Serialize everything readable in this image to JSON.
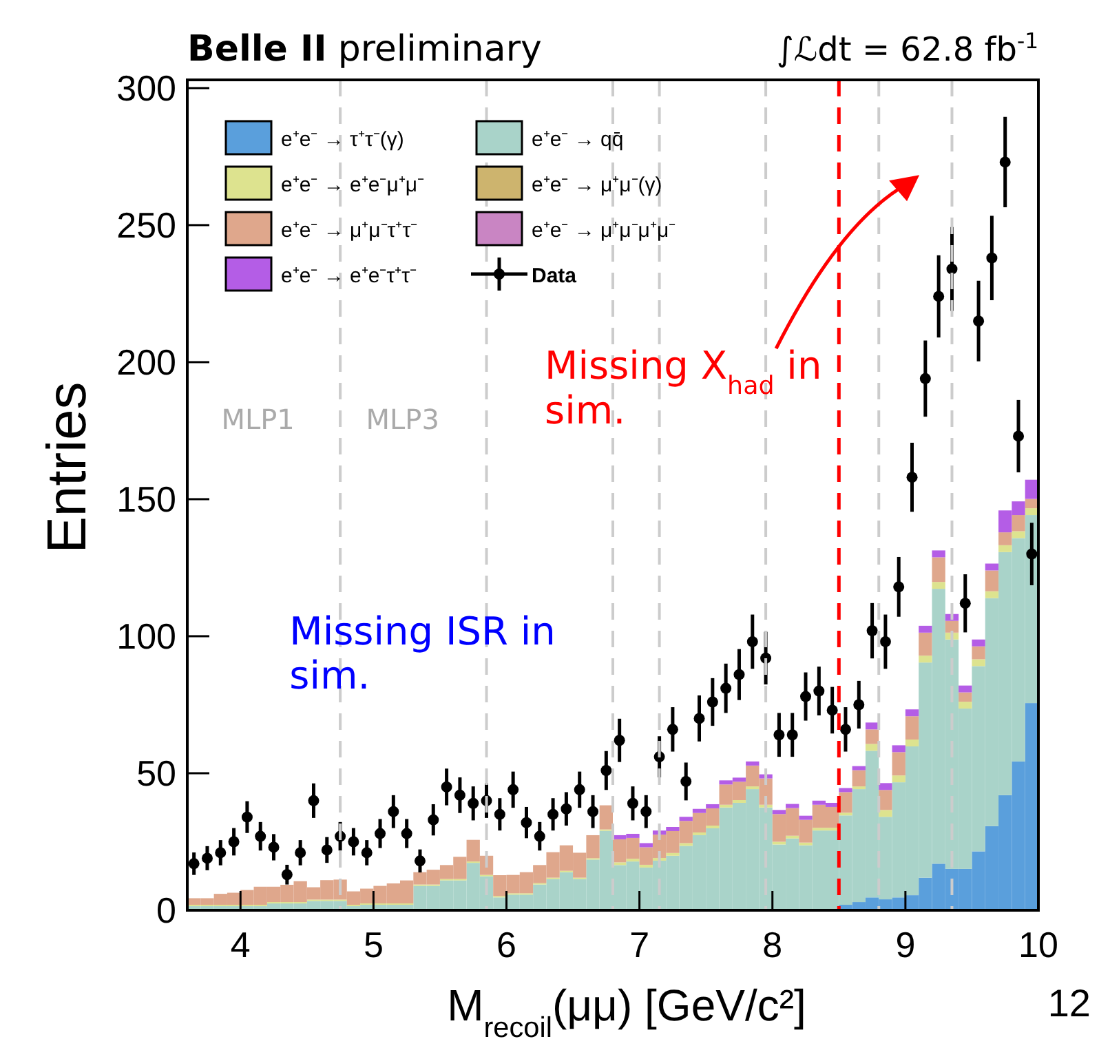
{
  "chart_data": {
    "type": "bar",
    "title": "Belle II",
    "subtitle": "preliminary",
    "xlabel": "M$_{recoil}$(μμ) [GeV/c²]",
    "ylabel": "Entries",
    "x": [
      3.65,
      3.75,
      3.85,
      3.95,
      4.05,
      4.15,
      4.25,
      4.35,
      4.45,
      4.55,
      4.65,
      4.75,
      4.85,
      4.95,
      5.05,
      5.15,
      5.25,
      5.35,
      5.45,
      5.55,
      5.65,
      5.75,
      5.85,
      5.95,
      6.05,
      6.15,
      6.25,
      6.35,
      6.45,
      6.55,
      6.65,
      6.75,
      6.85,
      6.95,
      7.05,
      7.15,
      7.25,
      7.35,
      7.45,
      7.55,
      7.65,
      7.75,
      7.85,
      7.95,
      8.05,
      8.15,
      8.25,
      8.35,
      8.45,
      8.55,
      8.65,
      8.75,
      8.85,
      8.95,
      9.05,
      9.15,
      9.25,
      9.35,
      9.45,
      9.55,
      9.65,
      9.75,
      9.85,
      9.95
    ],
    "stacked": true,
    "xlim": [
      3.6,
      10.0
    ],
    "xticks": [
      4,
      5,
      6,
      7,
      8,
      9,
      10
    ],
    "ylim": [
      0,
      303
    ],
    "yticks": [
      0,
      50,
      100,
      150,
      200,
      250,
      300
    ],
    "legend": "top left",
    "series": [
      {
        "name": "e⁺e⁻ → τ⁺τ⁻(γ)",
        "color": "#5a9fdc",
        "values": [
          0.5,
          0.5,
          0.5,
          0.5,
          0.5,
          0.5,
          0.5,
          0.5,
          0.5,
          0.5,
          0.5,
          0.5,
          0.5,
          0.5,
          0.5,
          0.5,
          0.5,
          0.5,
          0.5,
          0.5,
          0.5,
          0.5,
          0.5,
          0.5,
          0.5,
          0.5,
          0.5,
          0.5,
          0.5,
          0.5,
          0.5,
          0.5,
          0.5,
          0.5,
          0.5,
          0.5,
          0.5,
          0.5,
          0.5,
          0.5,
          0.5,
          0.5,
          0.5,
          0.5,
          0.5,
          0.5,
          0.5,
          0.5,
          0.5,
          2,
          3,
          4.7,
          4,
          4.7,
          5.5,
          11.9,
          17,
          15.1,
          15.1,
          21.5,
          30.7,
          42,
          54.3,
          75.6
        ]
      },
      {
        "name": "e⁺e⁻ → qq̄",
        "color": "#a9d3c9",
        "values": [
          1,
          1,
          1,
          1,
          1,
          1,
          2,
          2,
          2,
          2.9,
          2.9,
          2.9,
          1,
          1.5,
          1.5,
          1.5,
          1.5,
          8.4,
          8.4,
          10.4,
          10.4,
          16.8,
          11.9,
          4.2,
          5.2,
          5.2,
          8.9,
          10.9,
          13.4,
          10.9,
          18,
          28.5,
          16,
          17.3,
          15.1,
          17.6,
          19.4,
          23,
          26.9,
          29.4,
          37,
          38.7,
          43.7,
          37,
          23.5,
          25.7,
          23.2,
          28.6,
          28.6,
          32.6,
          41.2,
          53.5,
          30.1,
          42,
          54.3,
          78.5,
          100.3,
          83.7,
          58.5,
          67.6,
          83.2,
          88.7,
          81.5,
          68.6
        ]
      },
      {
        "name": "e⁺e⁻ → e⁺e⁻μ⁺μ⁻",
        "color": "#dde38f",
        "values": [
          0.5,
          0.5,
          0.5,
          0.5,
          0.5,
          0.5,
          0.5,
          0.5,
          0.5,
          0.5,
          0.5,
          0.5,
          0.5,
          0.5,
          0.5,
          0.5,
          0.5,
          0.5,
          0.5,
          0.5,
          0.5,
          0.5,
          0.5,
          0.5,
          0.5,
          0.5,
          0.5,
          0.5,
          0.5,
          0.5,
          0.5,
          0.5,
          1,
          1,
          1,
          1,
          1,
          1,
          1,
          1,
          1,
          1,
          1,
          1,
          1,
          1,
          1,
          1,
          1,
          1,
          1,
          2.5,
          2.5,
          2.5,
          2.5,
          2.5,
          2.5,
          2.5,
          2.5,
          2.5,
          2.5,
          2.5,
          2.5,
          2.5
        ]
      },
      {
        "name": "e⁺e⁻ → μ⁺μ⁻(γ)",
        "color": "#cdb46e",
        "values": [
          0,
          0,
          0,
          0,
          0,
          0,
          0,
          0,
          0,
          0,
          0,
          0,
          0,
          0,
          0,
          0,
          0,
          0,
          0,
          0,
          0,
          0,
          0,
          0,
          0,
          0,
          0,
          0,
          0,
          0,
          0,
          0,
          0,
          0,
          0,
          0,
          0,
          0,
          0,
          0,
          0,
          0,
          0,
          0,
          0,
          0,
          0,
          0,
          0,
          0,
          0,
          0,
          0,
          0,
          0,
          0,
          0,
          0,
          0,
          0,
          0,
          0,
          0,
          0
        ]
      },
      {
        "name": "e⁺e⁻ → μ⁺μ⁻τ⁺τ⁻",
        "color": "#dfa78c",
        "values": [
          2.4,
          2.4,
          4,
          4.4,
          5.4,
          6.6,
          5.6,
          6.3,
          7.6,
          4.5,
          7.1,
          7.3,
          4.9,
          5.4,
          6.4,
          7.3,
          8.4,
          4.5,
          5.4,
          5.1,
          8.1,
          7.9,
          7,
          7.6,
          6.7,
          7.7,
          6.6,
          9.3,
          9.3,
          9.1,
          8.4,
          8.8,
          8.4,
          7.6,
          6.4,
          8.5,
          8,
          8.1,
          7.1,
          6.3,
          7.4,
          6.7,
          7.6,
          9.6,
          10.1,
          10.1,
          8.3,
          8.4,
          7.6,
          7.5,
          5.9,
          5.3,
          7.3,
          8.5,
          8.5,
          8.4,
          9,
          4.3,
          3.4,
          4.7,
          7.6,
          4.7,
          5.9,
          3.4
        ]
      },
      {
        "name": "e⁺e⁻ → μ⁺μ⁻μ⁺μ⁻",
        "color": "#c985c3",
        "values": [
          0,
          0,
          0,
          0,
          0,
          0,
          0,
          0,
          0,
          0,
          0,
          0,
          0,
          0,
          0,
          0,
          0,
          0,
          0,
          0,
          0,
          0,
          0,
          0,
          0,
          0,
          0,
          0,
          0,
          0,
          0,
          0,
          0,
          0,
          0,
          0,
          0,
          0,
          0,
          0,
          0,
          0,
          0,
          0,
          0,
          0,
          0,
          0,
          0,
          0,
          0,
          0,
          0,
          0,
          0,
          0,
          0,
          0,
          0,
          0,
          0,
          0,
          0,
          0
        ]
      },
      {
        "name": "e⁺e⁻ → e⁺e⁻τ⁺τ⁻",
        "color": "#b45de6",
        "values": [
          0,
          0,
          0,
          0,
          0,
          0,
          0,
          0,
          0,
          0,
          0,
          0,
          0,
          0,
          0,
          0,
          0,
          0,
          0,
          0,
          0,
          0,
          0,
          0,
          0,
          0,
          0,
          0,
          0,
          0,
          0,
          0,
          1.5,
          1.5,
          1.5,
          1.5,
          1.5,
          1.5,
          1.5,
          1.5,
          1.5,
          1.5,
          1.5,
          1.5,
          1.5,
          1.5,
          1.5,
          1.5,
          1.5,
          1.5,
          1.5,
          2.5,
          2.5,
          2.5,
          2.5,
          2.5,
          2.5,
          2.5,
          2.5,
          2.5,
          2.5,
          8,
          5,
          7
        ]
      },
      {
        "type": "scatter",
        "name": "Data",
        "color": "#000000",
        "marker": "circle",
        "values": [
          17,
          19,
          21,
          25,
          34,
          27,
          23,
          13,
          21,
          40,
          22,
          27,
          25,
          21,
          28,
          36,
          28,
          18,
          33,
          45,
          42,
          39,
          40,
          35,
          44,
          32,
          27,
          35,
          37,
          44,
          36,
          51,
          62,
          39,
          36,
          56,
          66,
          47,
          70,
          76,
          81,
          86,
          98,
          92,
          64,
          64,
          78,
          80,
          73,
          66,
          75,
          102,
          98,
          118,
          158,
          194,
          224,
          234,
          112,
          215,
          238,
          273,
          173,
          130
        ],
        "errors": [
          4.1,
          4.4,
          4.6,
          5,
          5.8,
          5.2,
          4.8,
          3.6,
          4.6,
          6.3,
          4.7,
          5.2,
          5,
          4.6,
          5.3,
          6,
          5.3,
          4.2,
          5.7,
          6.7,
          6.5,
          6.2,
          6.3,
          5.9,
          6.6,
          5.7,
          5.2,
          5.9,
          6.1,
          6.6,
          6,
          7.1,
          7.9,
          6.2,
          6,
          7.5,
          8.1,
          6.9,
          8.4,
          8.7,
          9,
          9.3,
          9.9,
          9.6,
          8,
          8,
          8.8,
          8.9,
          8.5,
          8.1,
          8.7,
          10.1,
          9.9,
          10.9,
          12.6,
          13.9,
          15,
          15.3,
          10.6,
          14.7,
          15.4,
          16.5,
          13.2,
          11.4
        ]
      }
    ],
    "ref_lines": [
      {
        "axis": "x",
        "value": 4.75,
        "color": "#cccccc",
        "line_style": "dashed"
      },
      {
        "axis": "x",
        "value": 5.85,
        "color": "#cccccc",
        "line_style": "dashed"
      },
      {
        "axis": "x",
        "value": 6.8,
        "color": "#cccccc",
        "line_style": "dashed"
      },
      {
        "axis": "x",
        "value": 7.15,
        "color": "#cccccc",
        "line_style": "dashed"
      },
      {
        "axis": "x",
        "value": 7.95,
        "color": "#cccccc",
        "line_style": "dashed"
      },
      {
        "axis": "x",
        "value": 8.8,
        "color": "#cccccc",
        "line_style": "dashed"
      },
      {
        "axis": "x",
        "value": 9.35,
        "color": "#cccccc",
        "line_style": "dashed"
      },
      {
        "axis": "x",
        "value": 8.5,
        "color": "#ff0000",
        "line_style": "dashed"
      }
    ],
    "annotations": [
      "MLP1",
      "MLP3",
      "Missing ISR in sim.",
      "Missing X$_{had}$ in sim.",
      "∫ℒdt = 62.8 fb$^{-1}$",
      "12"
    ]
  }
}
